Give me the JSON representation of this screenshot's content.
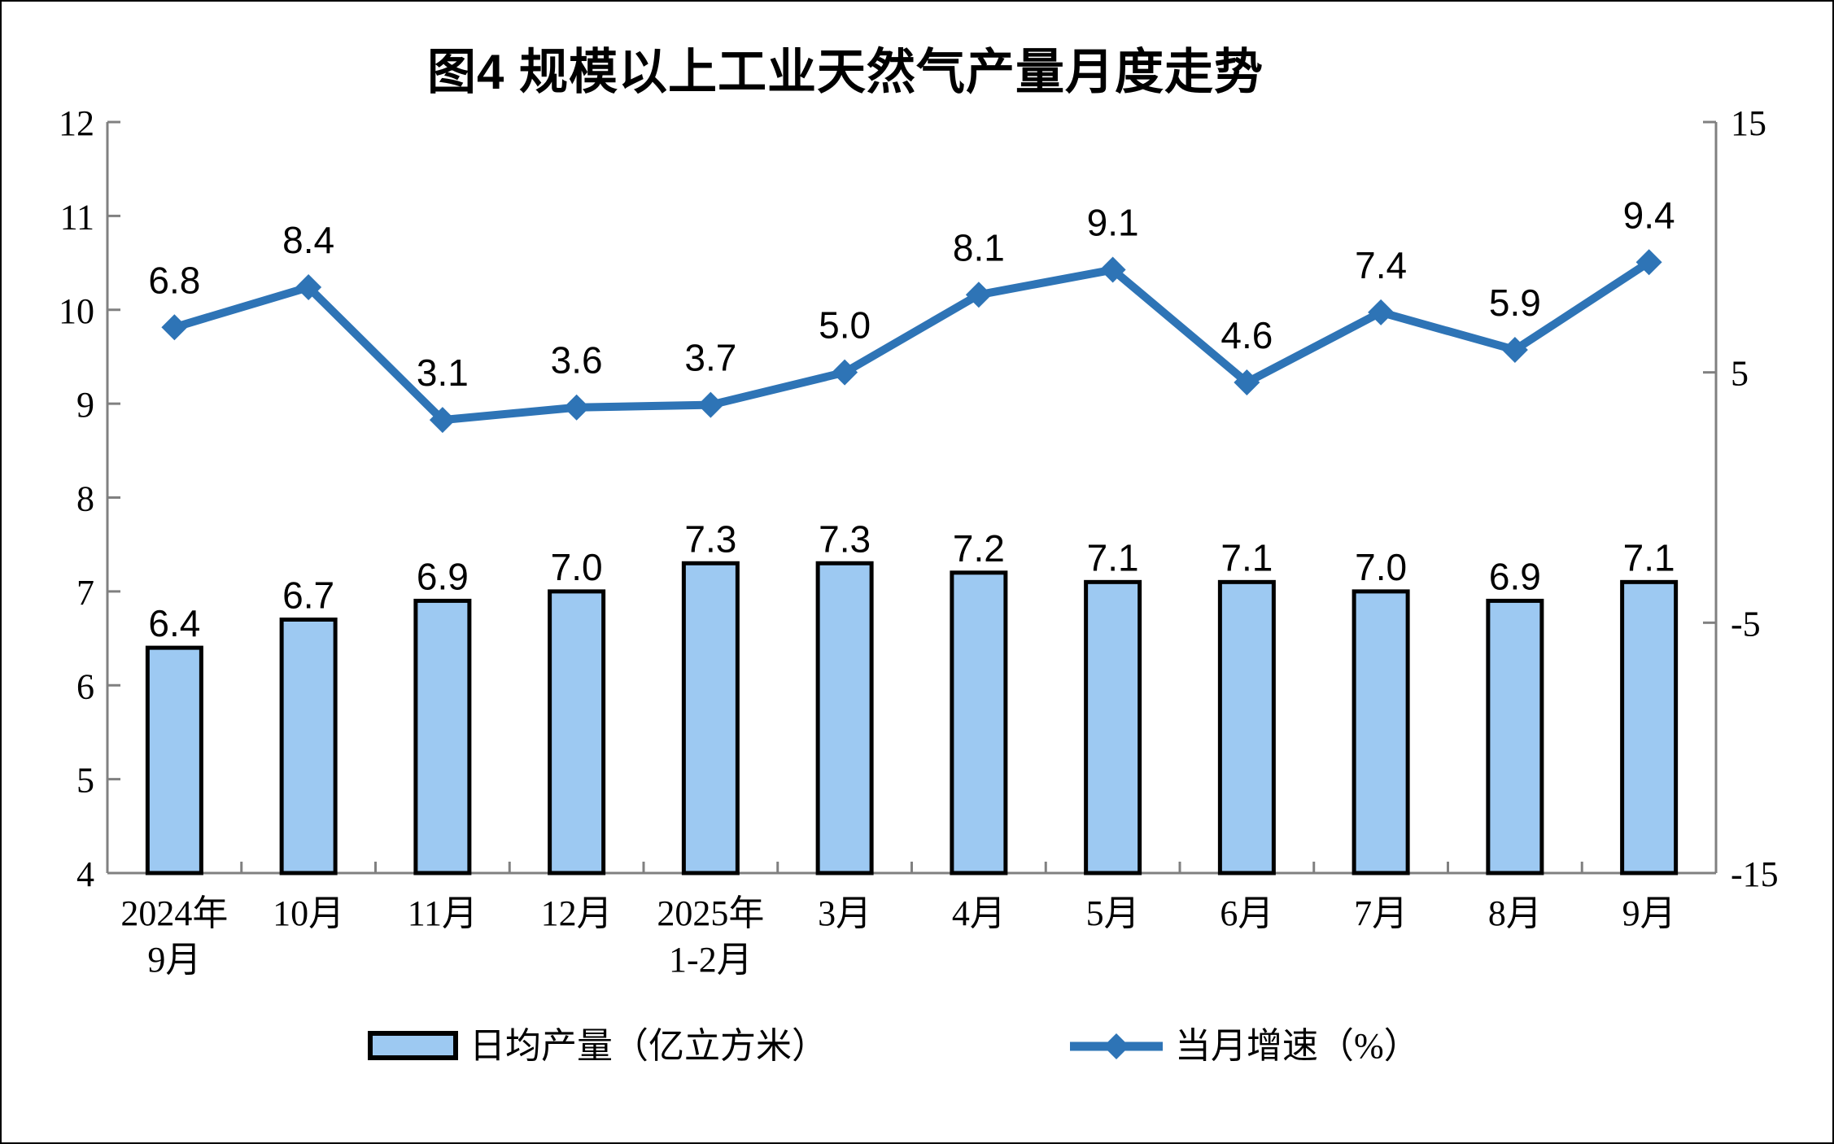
{
  "chart_data": {
    "type": "combo",
    "title": "图4 规模以上工业天然气产量月度走势",
    "categories": [
      [
        "2024年",
        "9月"
      ],
      [
        "10月"
      ],
      [
        "11月"
      ],
      [
        "12月"
      ],
      [
        "2025年",
        "1-2月"
      ],
      [
        "3月"
      ],
      [
        "4月"
      ],
      [
        "5月"
      ],
      [
        "6月"
      ],
      [
        "7月"
      ],
      [
        "8月"
      ],
      [
        "9月"
      ]
    ],
    "series": [
      {
        "name": "日均产量（亿立方米）",
        "type": "bar",
        "axis": "left",
        "values": [
          6.4,
          6.7,
          6.9,
          7.0,
          7.3,
          7.3,
          7.2,
          7.1,
          7.1,
          7.0,
          6.9,
          7.1
        ],
        "fill": "#9DC9F2",
        "stroke": "#000000"
      },
      {
        "name": "当月增速（%）",
        "type": "line",
        "axis": "right",
        "values": [
          6.8,
          8.4,
          3.1,
          3.6,
          3.7,
          5.0,
          8.1,
          9.1,
          4.6,
          7.4,
          5.9,
          9.4
        ],
        "color": "#2E74B6",
        "marker": "diamond"
      }
    ],
    "left_axis": {
      "min": 4,
      "max": 12,
      "ticks": [
        12,
        11,
        10,
        9,
        8,
        7,
        6,
        5,
        4
      ]
    },
    "right_axis": {
      "min": -15,
      "max": 15,
      "ticks": [
        15,
        5,
        -5,
        -15
      ]
    },
    "grid": false,
    "legend_position": "bottom",
    "axis_color": "#808080",
    "label_color": "#000000"
  }
}
